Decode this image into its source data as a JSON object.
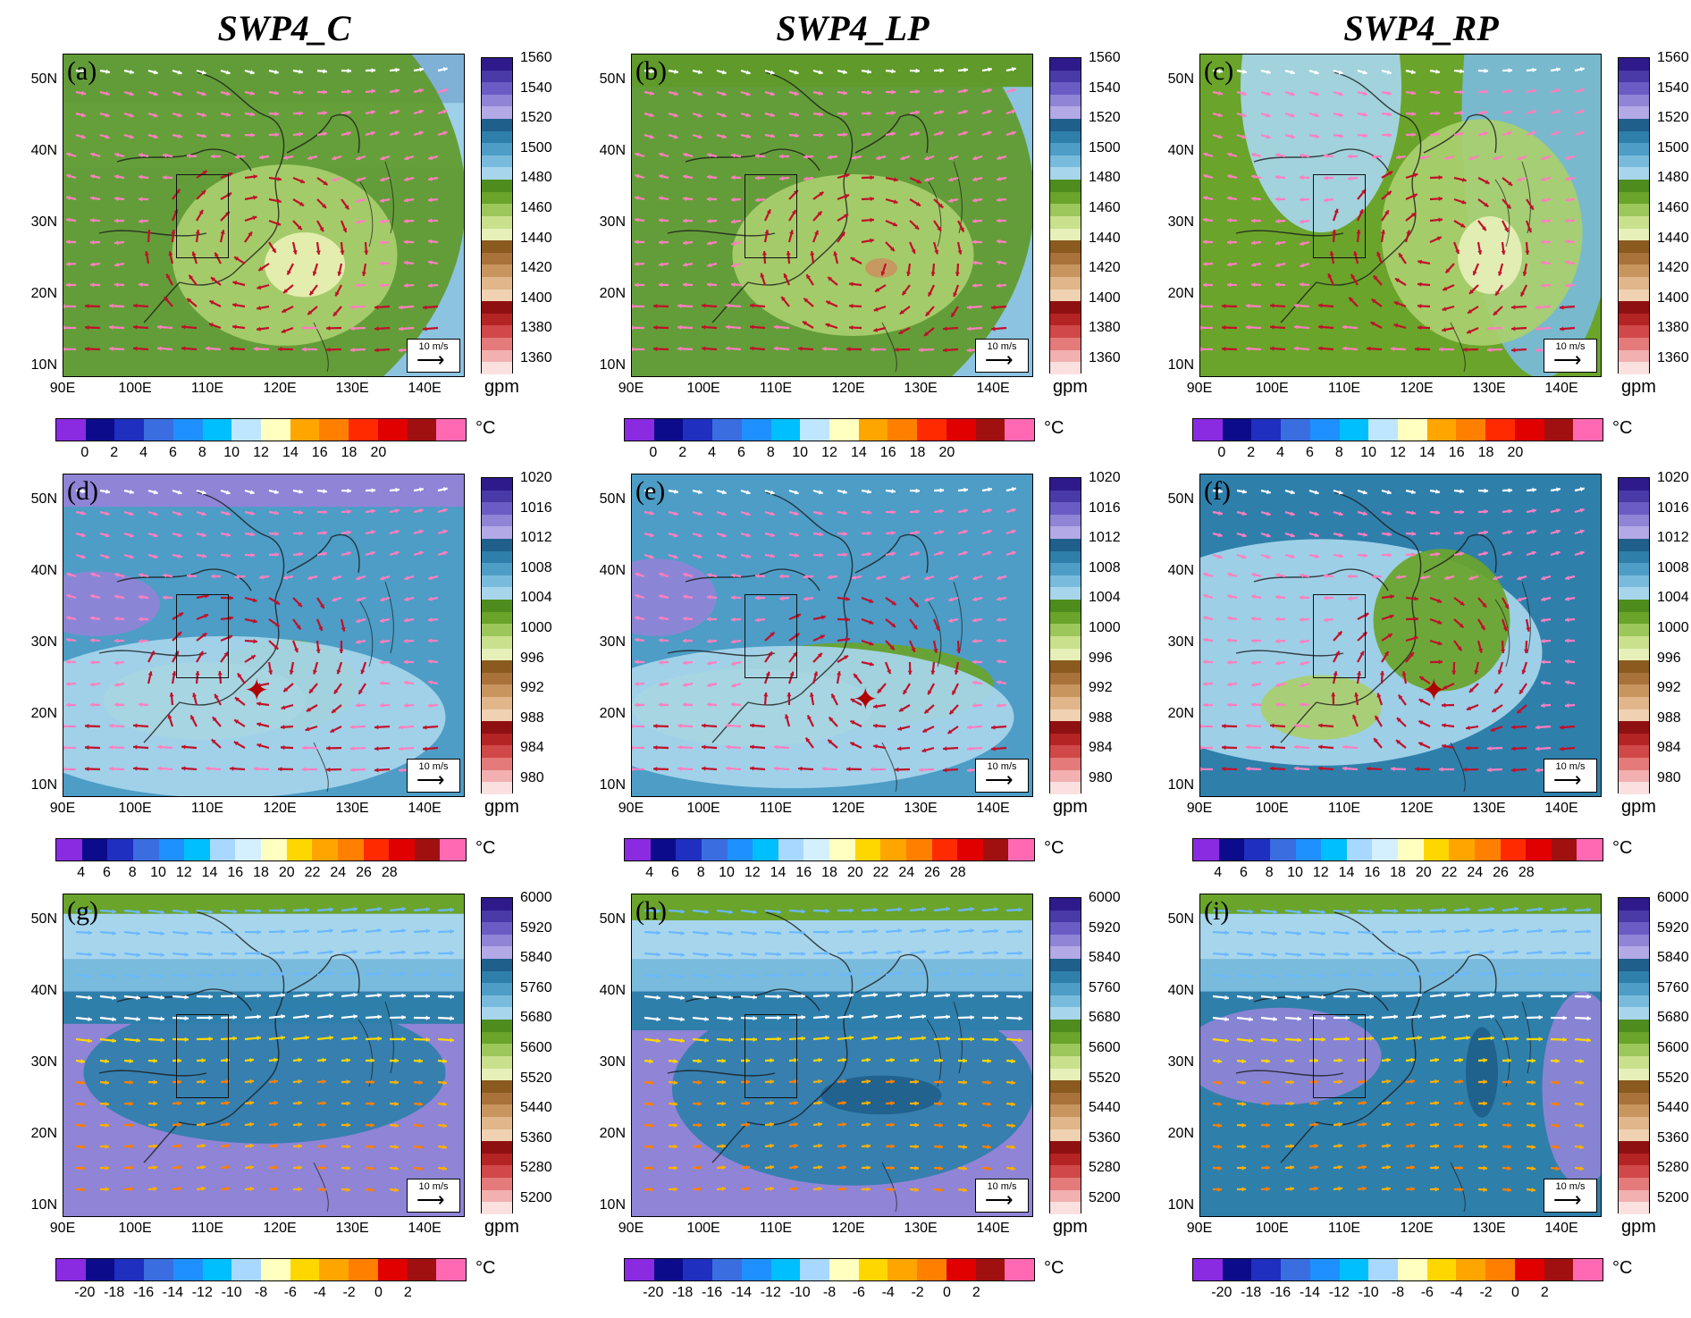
{
  "columns": [
    "SWP4_C",
    "SWP4_LP",
    "SWP4_RP"
  ],
  "panel_letters": [
    "(a)",
    "(b)",
    "(c)",
    "(d)",
    "(e)",
    "(f)",
    "(g)",
    "(h)",
    "(i)"
  ],
  "lat_labels": [
    "50N",
    "40N",
    "30N",
    "20N",
    "10N"
  ],
  "lon_labels": [
    "90E",
    "100E",
    "110E",
    "120E",
    "130E",
    "140E"
  ],
  "ref_vector": "10 m/s",
  "height_unit": "gpm",
  "temp_unit": "°C",
  "rows": [
    {
      "height_levels": [
        "1560",
        "1540",
        "1520",
        "1500",
        "1480",
        "1460",
        "1440",
        "1420",
        "1400",
        "1380",
        "1360"
      ],
      "temp_labels": [
        "0",
        "2",
        "4",
        "6",
        "8",
        "10",
        "12",
        "14",
        "16",
        "18",
        "20"
      ]
    },
    {
      "height_levels": [
        "1020",
        "1016",
        "1012",
        "1008",
        "1004",
        "1000",
        "996",
        "992",
        "988",
        "984",
        "980"
      ],
      "temp_labels": [
        "4",
        "6",
        "8",
        "10",
        "12",
        "14",
        "16",
        "18",
        "20",
        "22",
        "24",
        "26",
        "28"
      ]
    },
    {
      "height_levels": [
        "6000",
        "5920",
        "5840",
        "5760",
        "5680",
        "5600",
        "5520",
        "5440",
        "5360",
        "5280",
        "5200"
      ],
      "temp_labels": [
        "-20",
        "-18",
        "-16",
        "-14",
        "-12",
        "-10",
        "-8",
        "-6",
        "-4",
        "-2",
        "0",
        "2"
      ]
    }
  ],
  "colors": {
    "height_scale": [
      "#2e1a8a",
      "#4a3aa8",
      "#6a5cc4",
      "#8f84d6",
      "#b3a9e6",
      "#1f5f8b",
      "#2f7fab",
      "#4d9dc6",
      "#79bbdc",
      "#a7d6ec",
      "#4f8c1e",
      "#6aa42a",
      "#9cc75a",
      "#c9e08d",
      "#e6f0b8",
      "#8a5a1e",
      "#a8723a",
      "#c8955f",
      "#e0b68a",
      "#f0d2b2",
      "#8f1010",
      "#b52424",
      "#d04848",
      "#e47a7a",
      "#f2b0b0",
      "#fbe0e0"
    ],
    "temp_scale_row1": [
      "#8a2be2",
      "#0b0b8c",
      "#1f2fbf",
      "#3a6ee0",
      "#1e90ff",
      "#00bfff",
      "#bfe6ff",
      "#ffffc0",
      "#ffa500",
      "#ff7f00",
      "#ff2a00",
      "#e00000",
      "#a01010",
      "#ff69b4"
    ],
    "temp_scale_row2": [
      "#8a2be2",
      "#0b0b8c",
      "#1f2fbf",
      "#3a6ee0",
      "#1e90ff",
      "#00bfff",
      "#a8d8ff",
      "#d4f0ff",
      "#ffffc0",
      "#ffd700",
      "#ffa500",
      "#ff7f00",
      "#ff2a00",
      "#e00000",
      "#a01010",
      "#ff69b4"
    ],
    "temp_scale_row3": [
      "#8a2be2",
      "#0b0b8c",
      "#1f2fbf",
      "#3a6ee0",
      "#1e90ff",
      "#00bfff",
      "#a8d8ff",
      "#ffffc0",
      "#ffd700",
      "#ffa500",
      "#ff7f00",
      "#e00000",
      "#a01010",
      "#ff69b4"
    ]
  }
}
